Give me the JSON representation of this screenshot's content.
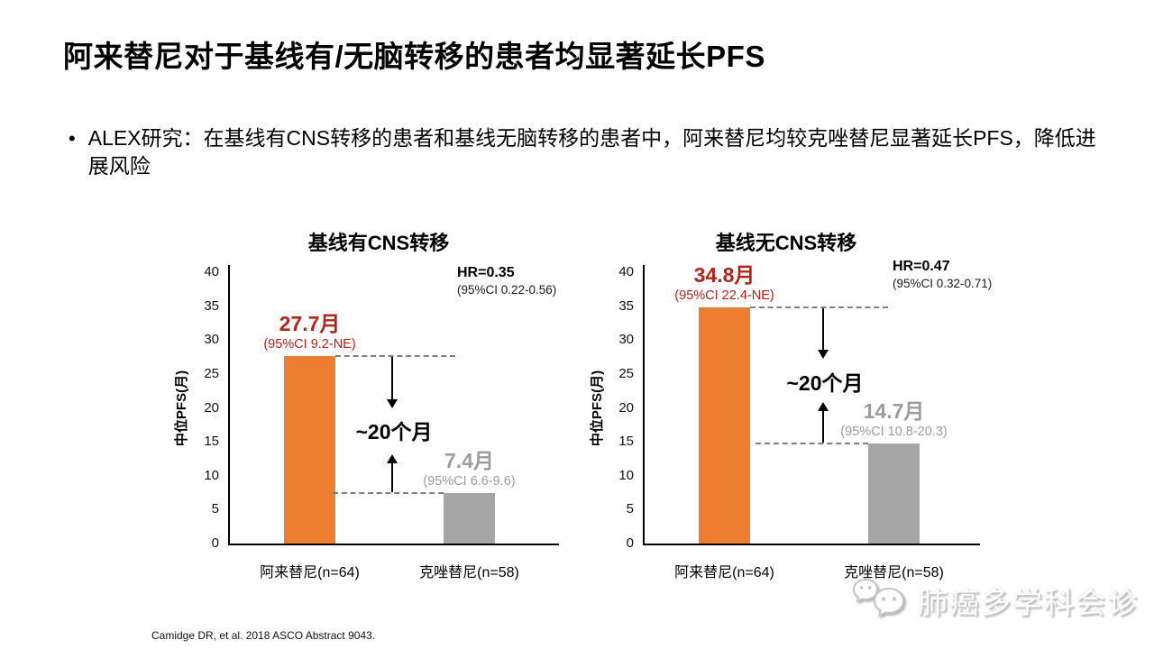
{
  "slide": {
    "title": "阿来替尼对于基线有/无脑转移的患者均显著延长PFS",
    "bullet_marker": "•",
    "bullet": "ALEX研究：在基线有CNS转移的患者和基线无脑转移的患者中，阿来替尼均较克唑替尼显著延长PFS，降低进展风险",
    "footnote": "Camidge DR, et al. 2018 ASCO Abstract 9043.",
    "watermark": "肺癌多学科会诊"
  },
  "colors": {
    "alectinib_bar": "#ED7D31",
    "crizotinib_bar": "#A5A5A5",
    "highlight_red": "#B2241A",
    "muted_gray": "#9C9C9C",
    "dash_gray": "#7F7F7F"
  },
  "chart_data": [
    {
      "type": "bar",
      "title": "基线有CNS转移",
      "ylabel": "中位PFS(月)",
      "ylim": [
        0,
        40
      ],
      "yticks": [
        0,
        5,
        10,
        15,
        20,
        25,
        30,
        35,
        40
      ],
      "grid": false,
      "categories": [
        "阿来替尼(n=64)",
        "克唑替尼(n=58)"
      ],
      "values": [
        27.7,
        7.4
      ],
      "bar_labels": [
        "27.7月",
        "7.4月"
      ],
      "bar_cis": [
        "(95%CI 9.2-NE)",
        "(95%CI 6.6-9.6)"
      ],
      "hr": "HR=0.35",
      "hr_ci": "(95%CI 0.22-0.56)",
      "difference_label": "~20个月"
    },
    {
      "type": "bar",
      "title": "基线无CNS转移",
      "ylabel": "中位PFS(月)",
      "ylim": [
        0,
        40
      ],
      "yticks": [
        0,
        5,
        10,
        15,
        20,
        25,
        30,
        35,
        40
      ],
      "grid": false,
      "categories": [
        "阿来替尼(n=64)",
        "克唑替尼(n=58)"
      ],
      "values": [
        34.8,
        14.7
      ],
      "bar_labels": [
        "34.8月",
        "14.7月"
      ],
      "bar_cis": [
        "(95%CI 22.4-NE)",
        "(95%CI 10.8-20.3)"
      ],
      "hr": "HR=0.47",
      "hr_ci": "(95%CI 0.32-0.71)",
      "difference_label": "~20个月"
    }
  ]
}
